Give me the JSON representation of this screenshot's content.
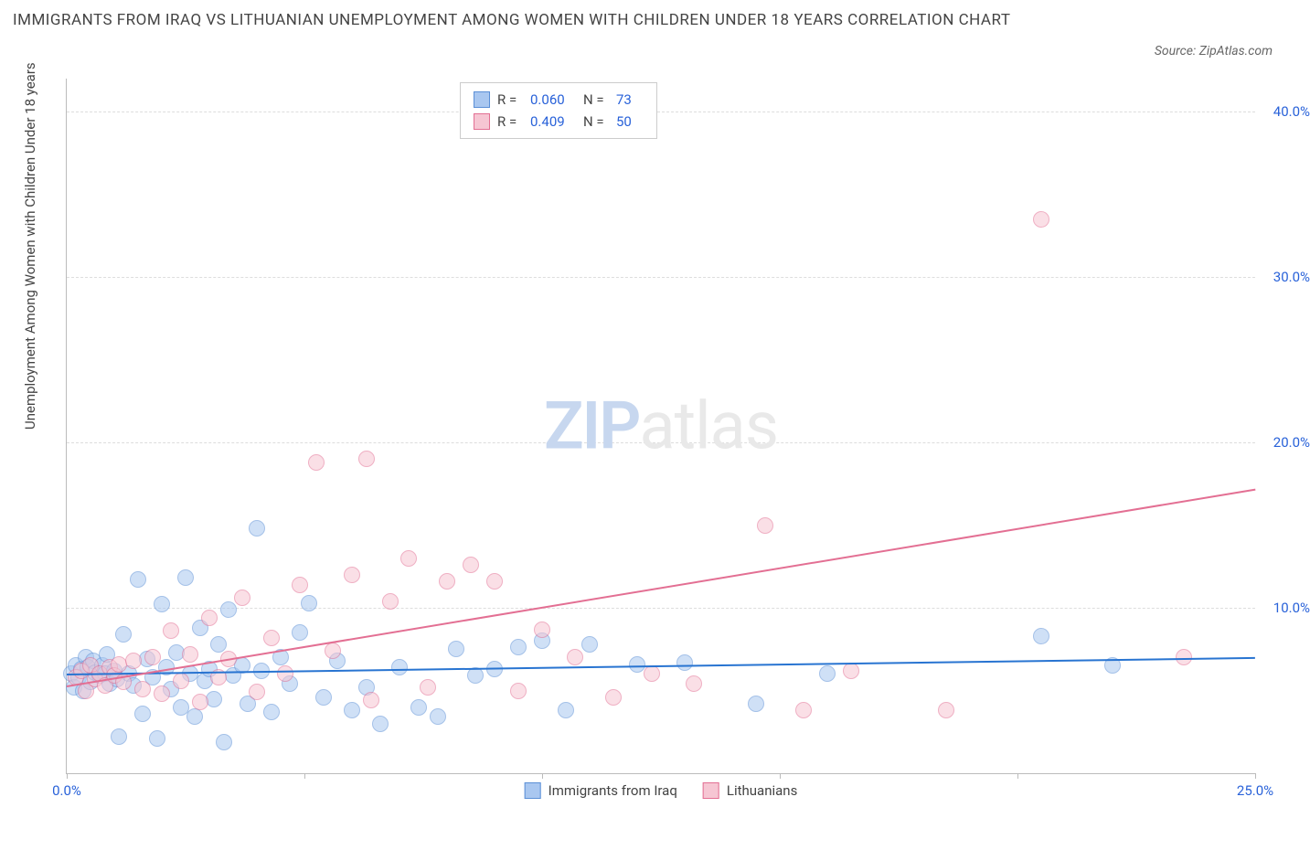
{
  "title": "IMMIGRANTS FROM IRAQ VS LITHUANIAN UNEMPLOYMENT AMONG WOMEN WITH CHILDREN UNDER 18 YEARS CORRELATION CHART",
  "source": "Source: ZipAtlas.com",
  "y_axis_label": "Unemployment Among Women with Children Under 18 years",
  "watermark": {
    "part1": "ZIP",
    "part2": "atlas"
  },
  "chart": {
    "type": "scatter",
    "background_color": "#ffffff",
    "grid_color": "#dddddd",
    "axis_color": "#bbbbbb",
    "tick_label_color": "#2962d9",
    "title_color": "#444444",
    "xlim": [
      0,
      25
    ],
    "ylim": [
      0,
      42
    ],
    "xticks": [
      0,
      5,
      10,
      15,
      20,
      25
    ],
    "xtick_labels": [
      "0.0%",
      "",
      "",
      "",
      "",
      "25.0%"
    ],
    "yticks": [
      10,
      20,
      30,
      40
    ],
    "ytick_labels": [
      "10.0%",
      "20.0%",
      "30.0%",
      "40.0%"
    ],
    "marker_radius": 8,
    "marker_opacity": 0.55,
    "series": [
      {
        "name": "Immigrants from Iraq",
        "fill_color": "#a9c7f0",
        "stroke_color": "#5b8fd6",
        "line_color": "#2874d1",
        "R": "0.060",
        "N": "73",
        "trend": {
          "x1": 0,
          "y1": 6.0,
          "x2": 25,
          "y2": 7.0
        },
        "points": [
          [
            0.1,
            6.0
          ],
          [
            0.15,
            5.2
          ],
          [
            0.2,
            6.5
          ],
          [
            0.25,
            5.8
          ],
          [
            0.3,
            6.3
          ],
          [
            0.35,
            5.0
          ],
          [
            0.4,
            7.0
          ],
          [
            0.45,
            6.4
          ],
          [
            0.5,
            5.5
          ],
          [
            0.55,
            6.8
          ],
          [
            0.6,
            6.1
          ],
          [
            0.7,
            5.9
          ],
          [
            0.75,
            6.5
          ],
          [
            0.8,
            6.0
          ],
          [
            0.85,
            7.2
          ],
          [
            0.9,
            5.4
          ],
          [
            1.0,
            6.2
          ],
          [
            1.05,
            5.7
          ],
          [
            1.1,
            2.2
          ],
          [
            1.2,
            8.4
          ],
          [
            1.3,
            6.0
          ],
          [
            1.4,
            5.3
          ],
          [
            1.5,
            11.7
          ],
          [
            1.6,
            3.6
          ],
          [
            1.7,
            6.9
          ],
          [
            1.8,
            5.8
          ],
          [
            1.9,
            2.1
          ],
          [
            2.0,
            10.2
          ],
          [
            2.1,
            6.4
          ],
          [
            2.2,
            5.1
          ],
          [
            2.3,
            7.3
          ],
          [
            2.4,
            4.0
          ],
          [
            2.5,
            11.8
          ],
          [
            2.6,
            6.0
          ],
          [
            2.7,
            3.4
          ],
          [
            2.8,
            8.8
          ],
          [
            2.9,
            5.6
          ],
          [
            3.0,
            6.3
          ],
          [
            3.1,
            4.5
          ],
          [
            3.2,
            7.8
          ],
          [
            3.3,
            1.9
          ],
          [
            3.4,
            9.9
          ],
          [
            3.5,
            5.9
          ],
          [
            3.7,
            6.5
          ],
          [
            3.8,
            4.2
          ],
          [
            4.0,
            14.8
          ],
          [
            4.1,
            6.2
          ],
          [
            4.3,
            3.7
          ],
          [
            4.5,
            7.0
          ],
          [
            4.7,
            5.4
          ],
          [
            4.9,
            8.5
          ],
          [
            5.1,
            10.3
          ],
          [
            5.4,
            4.6
          ],
          [
            5.7,
            6.8
          ],
          [
            6.0,
            3.8
          ],
          [
            6.3,
            5.2
          ],
          [
            6.6,
            3.0
          ],
          [
            7.0,
            6.4
          ],
          [
            7.4,
            4.0
          ],
          [
            7.8,
            3.4
          ],
          [
            8.2,
            7.5
          ],
          [
            8.6,
            5.9
          ],
          [
            9.0,
            6.3
          ],
          [
            9.5,
            7.6
          ],
          [
            10.0,
            8.0
          ],
          [
            10.5,
            3.8
          ],
          [
            11.0,
            7.8
          ],
          [
            12.0,
            6.6
          ],
          [
            13.0,
            6.7
          ],
          [
            14.5,
            4.2
          ],
          [
            16.0,
            6.0
          ],
          [
            20.5,
            8.3
          ],
          [
            22.0,
            6.5
          ]
        ]
      },
      {
        "name": "Lithuanians",
        "fill_color": "#f6c6d3",
        "stroke_color": "#e36f93",
        "line_color": "#e36f93",
        "R": "0.409",
        "N": "50",
        "trend": {
          "x1": 0,
          "y1": 5.3,
          "x2": 25,
          "y2": 17.2
        },
        "points": [
          [
            0.2,
            5.8
          ],
          [
            0.3,
            6.2
          ],
          [
            0.4,
            5.0
          ],
          [
            0.5,
            6.5
          ],
          [
            0.6,
            5.7
          ],
          [
            0.7,
            6.0
          ],
          [
            0.8,
            5.3
          ],
          [
            0.9,
            6.4
          ],
          [
            1.0,
            5.9
          ],
          [
            1.1,
            6.6
          ],
          [
            1.2,
            5.5
          ],
          [
            1.4,
            6.8
          ],
          [
            1.6,
            5.1
          ],
          [
            1.8,
            7.0
          ],
          [
            2.0,
            4.8
          ],
          [
            2.2,
            8.6
          ],
          [
            2.4,
            5.6
          ],
          [
            2.6,
            7.2
          ],
          [
            2.8,
            4.3
          ],
          [
            3.0,
            9.4
          ],
          [
            3.2,
            5.8
          ],
          [
            3.4,
            6.9
          ],
          [
            3.7,
            10.6
          ],
          [
            4.0,
            4.9
          ],
          [
            4.3,
            8.2
          ],
          [
            4.6,
            6.0
          ],
          [
            4.9,
            11.4
          ],
          [
            5.25,
            18.8
          ],
          [
            5.6,
            7.4
          ],
          [
            6.0,
            12.0
          ],
          [
            6.3,
            19.0
          ],
          [
            6.4,
            4.4
          ],
          [
            6.8,
            10.4
          ],
          [
            7.2,
            13.0
          ],
          [
            7.6,
            5.2
          ],
          [
            8.0,
            11.6
          ],
          [
            8.5,
            12.6
          ],
          [
            9.0,
            11.6
          ],
          [
            9.5,
            5.0
          ],
          [
            10.0,
            8.7
          ],
          [
            10.7,
            7.0
          ],
          [
            11.5,
            4.6
          ],
          [
            12.3,
            6.0
          ],
          [
            13.2,
            5.4
          ],
          [
            14.7,
            15.0
          ],
          [
            15.5,
            3.8
          ],
          [
            16.5,
            6.2
          ],
          [
            18.5,
            3.8
          ],
          [
            20.5,
            33.5
          ],
          [
            23.5,
            7.0
          ]
        ]
      }
    ]
  },
  "legend_top": {
    "R_label": "R =",
    "N_label": "N ="
  },
  "legend_bottom_labels": [
    "Immigrants from Iraq",
    "Lithuanians"
  ]
}
